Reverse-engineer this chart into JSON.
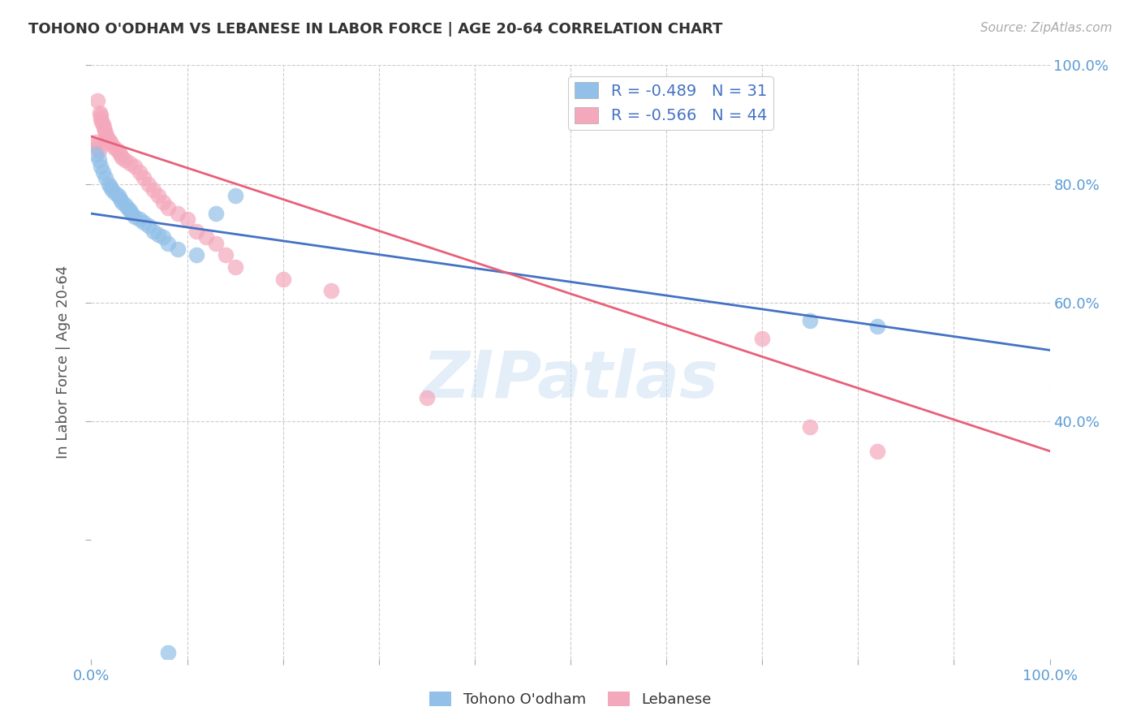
{
  "title": "TOHONO O'ODHAM VS LEBANESE IN LABOR FORCE | AGE 20-64 CORRELATION CHART",
  "source": "Source: ZipAtlas.com",
  "ylabel": "In Labor Force | Age 20-64",
  "xlim": [
    0.0,
    1.0
  ],
  "ylim": [
    0.0,
    1.0
  ],
  "grid_color": "#cccccc",
  "background_color": "#ffffff",
  "watermark": "ZIPatlas",
  "blue_color": "#92C0E8",
  "pink_color": "#F4A8BC",
  "blue_line_color": "#4472C4",
  "pink_line_color": "#E8607A",
  "blue_R": -0.489,
  "blue_N": 31,
  "pink_R": -0.566,
  "pink_N": 44,
  "legend_label_blue": "Tohono O'odham",
  "legend_label_pink": "Lebanese",
  "tohono_x": [
    0.005,
    0.008,
    0.01,
    0.012,
    0.015,
    0.018,
    0.02,
    0.022,
    0.025,
    0.028,
    0.03,
    0.032,
    0.035,
    0.038,
    0.04,
    0.042,
    0.045,
    0.05,
    0.055,
    0.06,
    0.065,
    0.07,
    0.075,
    0.08,
    0.09,
    0.11,
    0.13,
    0.15,
    0.08,
    0.75,
    0.82
  ],
  "tohono_y": [
    0.85,
    0.84,
    0.83,
    0.82,
    0.81,
    0.8,
    0.795,
    0.79,
    0.785,
    0.78,
    0.775,
    0.77,
    0.765,
    0.76,
    0.755,
    0.75,
    0.745,
    0.74,
    0.735,
    0.73,
    0.72,
    0.715,
    0.71,
    0.7,
    0.69,
    0.68,
    0.75,
    0.78,
    0.01,
    0.57,
    0.56
  ],
  "lebanese_x": [
    0.005,
    0.005,
    0.006,
    0.007,
    0.008,
    0.009,
    0.01,
    0.01,
    0.011,
    0.012,
    0.013,
    0.014,
    0.015,
    0.016,
    0.018,
    0.02,
    0.022,
    0.025,
    0.028,
    0.03,
    0.032,
    0.035,
    0.04,
    0.045,
    0.05,
    0.055,
    0.06,
    0.065,
    0.07,
    0.075,
    0.08,
    0.09,
    0.1,
    0.11,
    0.12,
    0.13,
    0.14,
    0.15,
    0.2,
    0.25,
    0.7,
    0.75,
    0.82,
    0.35
  ],
  "lebanese_y": [
    0.87,
    0.865,
    0.94,
    0.86,
    0.855,
    0.92,
    0.915,
    0.91,
    0.905,
    0.9,
    0.895,
    0.89,
    0.885,
    0.88,
    0.875,
    0.87,
    0.865,
    0.86,
    0.855,
    0.85,
    0.845,
    0.84,
    0.835,
    0.83,
    0.82,
    0.81,
    0.8,
    0.79,
    0.78,
    0.77,
    0.76,
    0.75,
    0.74,
    0.72,
    0.71,
    0.7,
    0.68,
    0.66,
    0.64,
    0.62,
    0.54,
    0.39,
    0.35,
    0.44
  ]
}
